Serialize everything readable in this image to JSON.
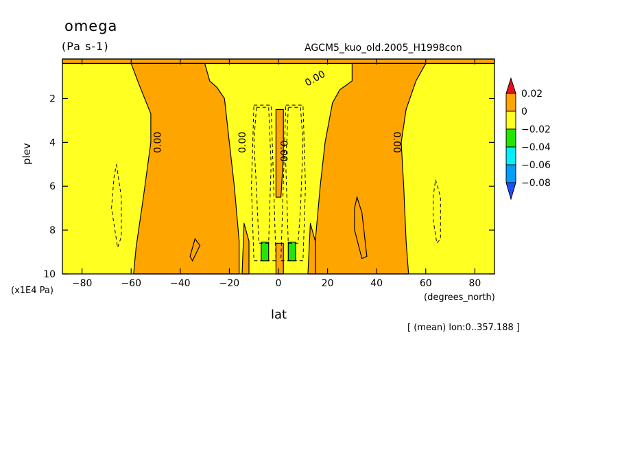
{
  "chart_data": {
    "type": "heatmap",
    "title": "omega",
    "units": "(Pa s-1)",
    "run_label": "AGCM5_kuo_old.2005_H1998con",
    "xlabel": "lat",
    "xunit_label": "(degrees_north)",
    "ylabel": "plev",
    "yunit_label": "(x1E4 Pa)",
    "note": "[ (mean) lon:0..357.188 ]",
    "xlim": [
      -88,
      88
    ],
    "ylim": [
      0.2,
      10
    ],
    "y_inverted": true,
    "xticks": [
      -80,
      -60,
      -40,
      -20,
      0,
      20,
      40,
      60,
      80
    ],
    "xtick_labels": [
      "−80",
      "−60",
      "−40",
      "−20",
      "0",
      "20",
      "40",
      "60",
      "80"
    ],
    "yticks": [
      2,
      4,
      6,
      8,
      10
    ],
    "ytick_labels": [
      "2",
      "4",
      "6",
      "8",
      "10"
    ],
    "contour_labels": [
      "0.00",
      "0.00",
      "0.00",
      "0.00",
      "0.00"
    ],
    "colorbar": {
      "bins": [
        {
          "range": [
            0.02,
            null
          ],
          "color": "#e8101e"
        },
        {
          "range": [
            0,
            0.02
          ],
          "color": "#ffa500"
        },
        {
          "range": [
            -0.02,
            0
          ],
          "color": "#ffff22"
        },
        {
          "range": [
            -0.04,
            -0.02
          ],
          "color": "#22e600"
        },
        {
          "range": [
            -0.06,
            -0.04
          ],
          "color": "#00f0ff"
        },
        {
          "range": [
            -0.08,
            -0.06
          ],
          "color": "#00a0ff"
        },
        {
          "range": [
            null,
            -0.08
          ],
          "color": "#1e50ff"
        }
      ],
      "labels": [
        "0.02",
        "0",
        "−0.02",
        "−0.04",
        "−0.06",
        "−0.08"
      ]
    },
    "regions": [
      {
        "name": "upper-band",
        "sign": "positive",
        "points": [
          [
            -88,
            0.2
          ],
          [
            88,
            0.2
          ],
          [
            88,
            0.4
          ],
          [
            -88,
            0.4
          ]
        ]
      },
      {
        "name": "west-descent",
        "sign": "positive",
        "points": [
          [
            -60,
            0.4
          ],
          [
            -57,
            1.3
          ],
          [
            -52,
            2.7
          ],
          [
            -52,
            4
          ],
          [
            -55,
            6.5
          ],
          [
            -58,
            8.8
          ],
          [
            -59,
            10
          ],
          [
            -16,
            10
          ],
          [
            -16,
            8.5
          ],
          [
            -18,
            6
          ],
          [
            -20,
            4
          ],
          [
            -22,
            2
          ],
          [
            -25,
            1.5
          ],
          [
            -28,
            1.2
          ],
          [
            -30,
            0.4
          ]
        ]
      },
      {
        "name": "east-descent",
        "sign": "positive",
        "points": [
          [
            30,
            0.4
          ],
          [
            30,
            1.2
          ],
          [
            25,
            1.6
          ],
          [
            22,
            2.2
          ],
          [
            19,
            4
          ],
          [
            17,
            6
          ],
          [
            15,
            8.5
          ],
          [
            15,
            10
          ],
          [
            53,
            10
          ],
          [
            52,
            8.5
          ],
          [
            51,
            6
          ],
          [
            50,
            4
          ],
          [
            52,
            2.5
          ],
          [
            56,
            1.2
          ],
          [
            60,
            0.4
          ]
        ]
      },
      {
        "name": "equatorial-tongue",
        "sign": "positive",
        "points": [
          [
            -1,
            2.5
          ],
          [
            2,
            2.5
          ],
          [
            2,
            4.6
          ],
          [
            1,
            6.5
          ],
          [
            -1,
            6.5
          ]
        ]
      },
      {
        "name": "equatorial-foot",
        "sign": "positive",
        "points": [
          [
            -1,
            8.6
          ],
          [
            2,
            8.6
          ],
          [
            2,
            10
          ],
          [
            -1,
            10
          ]
        ]
      },
      {
        "name": "west-spike",
        "sign": "positive",
        "points": [
          [
            -14,
            7.7
          ],
          [
            -12,
            8.5
          ],
          [
            -12,
            10
          ],
          [
            -14.8,
            10
          ]
        ]
      },
      {
        "name": "east-spike",
        "sign": "positive",
        "points": [
          [
            13,
            7.7
          ],
          [
            15,
            8.5
          ],
          [
            15,
            10
          ],
          [
            12,
            10
          ]
        ]
      },
      {
        "name": "green-west",
        "sign": "negative",
        "points": [
          [
            -7,
            8.55
          ],
          [
            -4,
            8.55
          ],
          [
            -4,
            9.4
          ],
          [
            -7,
            9.4
          ]
        ]
      },
      {
        "name": "green-east",
        "sign": "negative",
        "points": [
          [
            4,
            8.55
          ],
          [
            7,
            8.55
          ],
          [
            7,
            9.4
          ],
          [
            4,
            9.4
          ]
        ]
      }
    ]
  }
}
